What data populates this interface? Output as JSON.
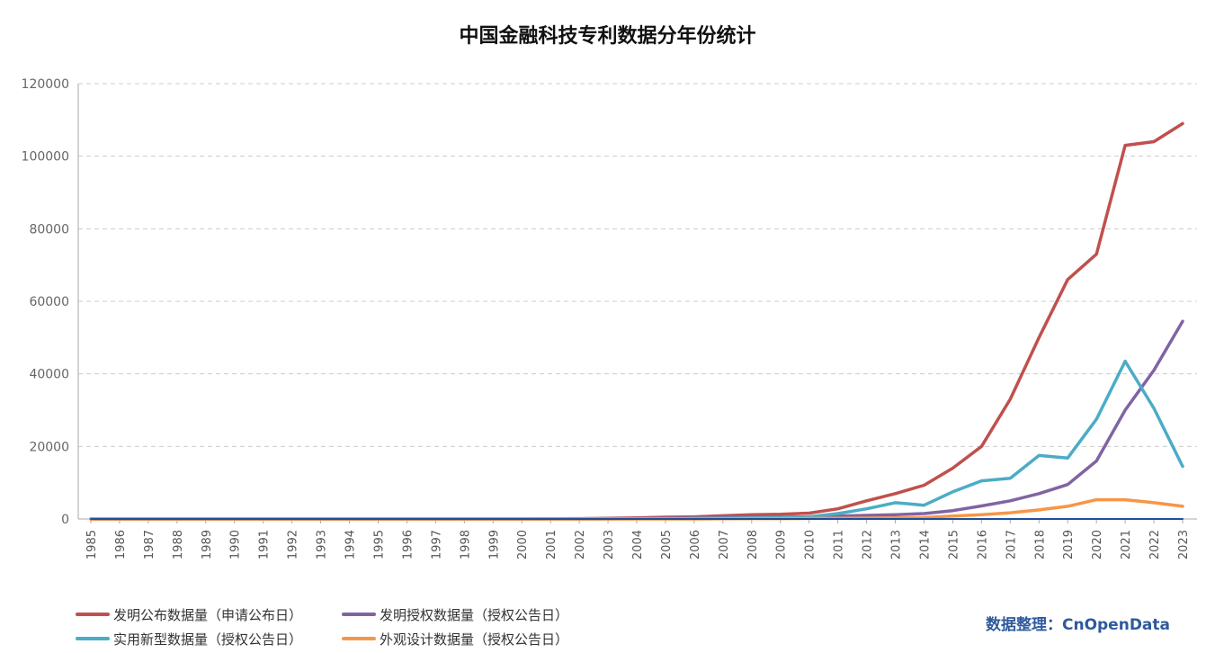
{
  "chart_data": {
    "type": "line",
    "title": "中国金融科技专利数据分年份统计",
    "xlabel": "",
    "ylabel": "",
    "ylim": [
      0,
      120000
    ],
    "yticks": [
      "0",
      "20000",
      "40000",
      "60000",
      "80000",
      "100000",
      "120000"
    ],
    "grid": true,
    "legend_position": "bottom-left",
    "x": [
      "1985",
      "1986",
      "1987",
      "1988",
      "1989",
      "1990",
      "1991",
      "1992",
      "1993",
      "1994",
      "1995",
      "1996",
      "1997",
      "1998",
      "1999",
      "2000",
      "2001",
      "2002",
      "2003",
      "2004",
      "2005",
      "2006",
      "2007",
      "2008",
      "2009",
      "2010",
      "2011",
      "2012",
      "2013",
      "2014",
      "2015",
      "2016",
      "2017",
      "2018",
      "2019",
      "2020",
      "2021",
      "2022",
      "2023"
    ],
    "series": [
      {
        "name": "发明公布数据量（申请公布日）",
        "color": "#c0504d",
        "values": [
          0,
          0,
          0,
          0,
          0,
          0,
          0,
          0,
          0,
          0,
          0,
          0,
          0,
          0,
          0,
          0,
          50,
          100,
          200,
          300,
          500,
          600,
          900,
          1200,
          1300,
          1600,
          2800,
          5000,
          7000,
          9300,
          14000,
          20000,
          33000,
          50000,
          66000,
          73000,
          103000,
          104000,
          109000
        ]
      },
      {
        "name": "发明授权数据量（授权公告日）",
        "color": "#8064a2",
        "values": [
          0,
          0,
          0,
          0,
          0,
          0,
          0,
          0,
          0,
          0,
          0,
          0,
          0,
          0,
          0,
          0,
          0,
          0,
          50,
          100,
          150,
          200,
          300,
          400,
          500,
          600,
          800,
          1000,
          1200,
          1500,
          2300,
          3600,
          5000,
          7000,
          9500,
          16000,
          30000,
          41000,
          54500
        ]
      },
      {
        "name": "实用新型数据量（授权公告日）",
        "color": "#4bacc6",
        "values": [
          0,
          0,
          0,
          0,
          0,
          0,
          0,
          0,
          0,
          0,
          0,
          0,
          0,
          0,
          0,
          0,
          0,
          0,
          0,
          50,
          100,
          150,
          200,
          300,
          400,
          600,
          1500,
          2800,
          4500,
          3800,
          7500,
          10500,
          11200,
          17500,
          16800,
          27500,
          43500,
          30500,
          14500
        ]
      },
      {
        "name": "外观设计数据量（授权公告日）",
        "color": "#f79646",
        "values": [
          0,
          0,
          0,
          0,
          0,
          0,
          0,
          0,
          0,
          0,
          0,
          0,
          0,
          0,
          0,
          0,
          0,
          0,
          0,
          0,
          0,
          0,
          50,
          100,
          100,
          150,
          200,
          250,
          300,
          400,
          800,
          1200,
          1700,
          2500,
          3500,
          5300,
          5300,
          4500,
          3500
        ]
      },
      {
        "color": "#1f4e9c",
        "values": [
          0,
          0,
          0,
          0,
          0,
          0,
          0,
          0,
          0,
          0,
          0,
          0,
          0,
          0,
          0,
          0,
          0,
          0,
          0,
          0,
          0,
          0,
          0,
          0,
          0,
          0,
          0,
          0,
          0,
          0,
          0,
          0,
          0,
          0,
          0,
          0,
          0,
          0,
          0
        ]
      }
    ]
  },
  "footer": {
    "source_credit": "数据整理：CnOpenData"
  }
}
